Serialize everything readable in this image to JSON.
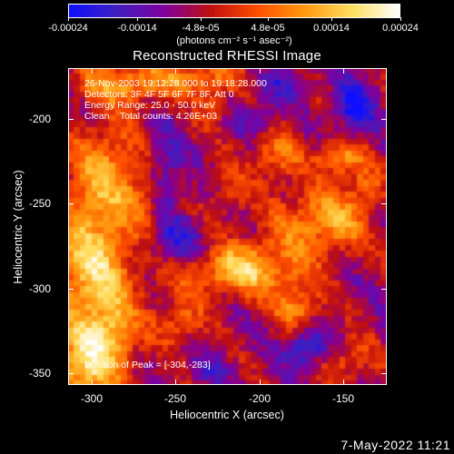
{
  "colorbar": {
    "tick_labels": [
      "-0.00024",
      "-0.00014",
      "-4.8e-05",
      "4.8e-05",
      "0.00014",
      "0.00024"
    ],
    "tick_values": [
      -0.00024,
      -0.00014,
      -4.8e-05,
      4.8e-05,
      0.00014,
      0.00024
    ],
    "units_label": "(photons cm⁻² s⁻¹ asec⁻²)",
    "range": [
      -0.00024,
      0.00024
    ],
    "colors": [
      "#1010ff",
      "#4020c0",
      "#8000a0",
      "#c01010",
      "#ff5000",
      "#ff9a10",
      "#ffe060",
      "#ffffff"
    ]
  },
  "title": "Reconstructed RHESSI Image",
  "annotations": {
    "line1": "26-Nov-2003 19:12:28.000 to 19:18:28.000",
    "line2": "Detectors: 3F 4F 5F 6F 7F 8F, Att 0",
    "line3": "Energy Range: 25.0 - 50.0 keV",
    "line4": "Clean    Total counts: 4.26E+03",
    "peak": "Position of Peak = [-304,-283]"
  },
  "axes": {
    "xlabel": "Heliocentric X (arcsec)",
    "ylabel": "Heliocentric Y (arcsec)",
    "x_ticks": [
      "-300",
      "-250",
      "-200",
      "-150"
    ],
    "x_tick_values": [
      -300,
      -250,
      -200,
      -150
    ],
    "y_ticks": [
      "-200",
      "-250",
      "-300",
      "-350"
    ],
    "y_tick_values": [
      -200,
      -250,
      -300,
      -350
    ],
    "xlim": [
      -314,
      -124
    ],
    "ylim": [
      -357,
      -170
    ]
  },
  "chart_data": {
    "type": "heatmap",
    "title": "Reconstructed RHESSI Image",
    "xlabel": "Heliocentric X (arcsec)",
    "ylabel": "Heliocentric Y (arcsec)",
    "xlim": [
      -314,
      -124
    ],
    "ylim": [
      -357,
      -170
    ],
    "peak_position": [
      -304,
      -283
    ],
    "color_range": [
      -0.00024,
      0.00024
    ]
  },
  "timestamp": "7-May-2022 11:21"
}
